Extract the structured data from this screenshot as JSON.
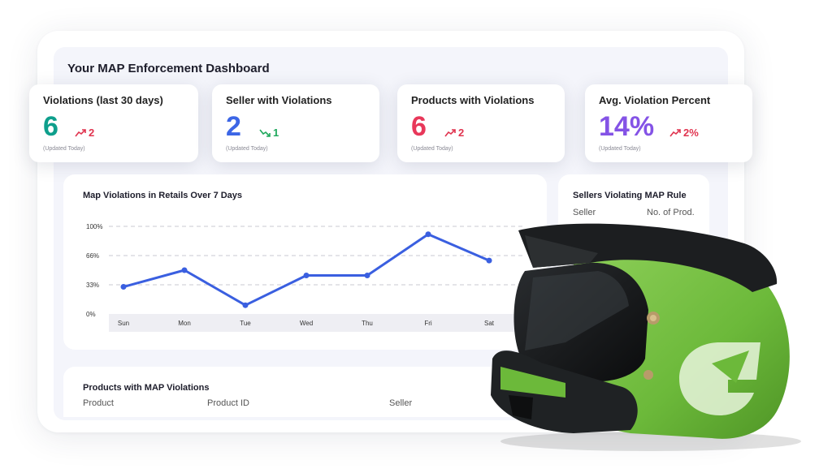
{
  "dashboard": {
    "title": "Your MAP Enforcement Dashboard"
  },
  "stats": [
    {
      "title": "Violations (last 30 days)",
      "value": "6",
      "change": "2",
      "trend": "up",
      "updated": "(Updated Today)",
      "value_color": "#0e9f8c",
      "change_color": "#e0344f"
    },
    {
      "title": "Seller with Violations",
      "value": "2",
      "change": "1",
      "trend": "down",
      "updated": "(Updated Today)",
      "value_color": "#3c66e6",
      "change_color": "#1fa85c"
    },
    {
      "title": "Products with Violations",
      "value": "6",
      "change": "2",
      "trend": "up",
      "updated": "(Updated Today)",
      "value_color": "#e8385a",
      "change_color": "#e0344f"
    },
    {
      "title": "Avg. Violation Percent",
      "value": "14%",
      "change": "2%",
      "trend": "up",
      "updated": "(Updated Today)",
      "value_color": "#8453e6",
      "change_color": "#e0344f"
    }
  ],
  "chart_panel": {
    "title": "Map Violations in Retails Over 7 Days"
  },
  "chart_data": {
    "type": "line",
    "title": "Map Violations in Retails Over 7 Days",
    "categories": [
      "Sun",
      "Mon",
      "Tue",
      "Wed",
      "Thu",
      "Fri",
      "Sat"
    ],
    "y_ticks": [
      "0%",
      "33%",
      "66%",
      "100%"
    ],
    "ylim": [
      0,
      100
    ],
    "series": [
      {
        "values": [
          31,
          50,
          10,
          44,
          44,
          91,
          61
        ],
        "color": "#3a5fe0"
      }
    ],
    "grid": true
  },
  "sellers_panel": {
    "title": "Sellers Violating MAP Rule",
    "columns": [
      "Seller",
      "No. of Prod."
    ]
  },
  "products_panel": {
    "title": "Products with MAP Violations",
    "columns": [
      "Product",
      "Product ID",
      "Seller"
    ]
  },
  "icons": {
    "trend_up": "trend-up-icon",
    "trend_down": "trend-down-icon",
    "helmet": "motorcycle-helmet-image"
  }
}
